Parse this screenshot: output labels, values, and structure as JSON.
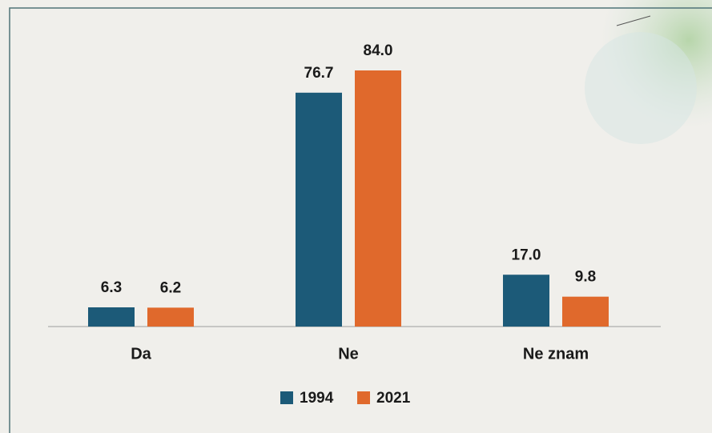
{
  "chart_data": {
    "type": "bar",
    "categories": [
      "Da",
      "Ne",
      "Ne znam"
    ],
    "series": [
      {
        "name": "1994",
        "color": "#1c5a78",
        "values": [
          6.3,
          76.7,
          17.0
        ],
        "value_labels": [
          "6.3",
          "76.7",
          "17.0"
        ]
      },
      {
        "name": "2021",
        "color": "#e0692c",
        "values": [
          6.2,
          84.0,
          9.8
        ],
        "value_labels": [
          "6.2",
          "84.0",
          "9.8"
        ]
      }
    ]
  }
}
